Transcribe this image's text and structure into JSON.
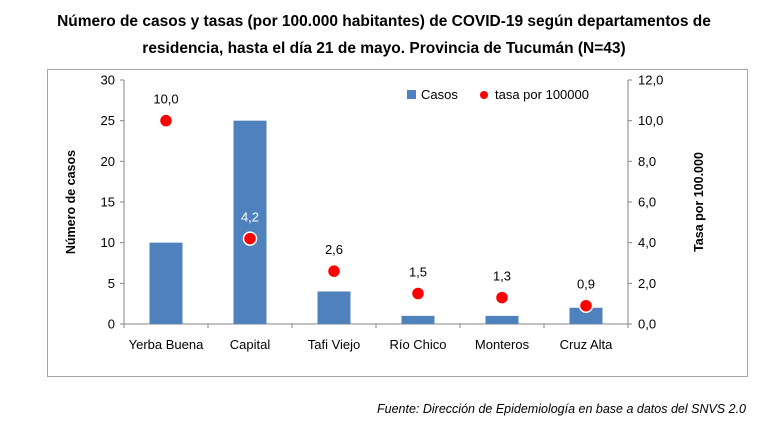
{
  "title_line1": "Número de casos y tasas (por 100.000 habitantes) de COVID-19 según departamentos de",
  "title_line2": "residencia, hasta el día 21 de mayo. Provincia de Tucumán (N=43)",
  "source": "Fuente: Dirección de Epidemiología en base a datos del SNVS 2.0",
  "colors": {
    "bar": "#4f81bd",
    "dot": "#ff0000",
    "dot_stroke": "#ffffff"
  },
  "chart_data": {
    "type": "bar",
    "categories": [
      "Yerba Buena",
      "Capital",
      "Tafi Viejo",
      "Río Chico",
      "Monteros",
      "Cruz Alta"
    ],
    "series": [
      {
        "name": "Casos",
        "type": "bar",
        "axis": "left",
        "values": [
          10,
          25,
          4,
          1,
          1,
          2
        ]
      },
      {
        "name": "tasa por 100000",
        "type": "scatter",
        "axis": "right",
        "values": [
          10.0,
          4.2,
          2.6,
          1.5,
          1.3,
          0.9
        ],
        "labels": [
          "10,0",
          "4,2",
          "2,6",
          "1,5",
          "1,3",
          "0,9"
        ]
      }
    ],
    "ylabel": "Número de casos",
    "y2label": "Tasa por 100.000",
    "ylim": [
      0,
      30
    ],
    "y2lim": [
      0,
      12
    ],
    "yticks": [
      "0",
      "5",
      "10",
      "15",
      "20",
      "25",
      "30"
    ],
    "y2ticks": [
      "0,0",
      "2,0",
      "4,0",
      "6,0",
      "8,0",
      "10,0",
      "12,0"
    ],
    "legend": "top-right",
    "grid": false
  }
}
